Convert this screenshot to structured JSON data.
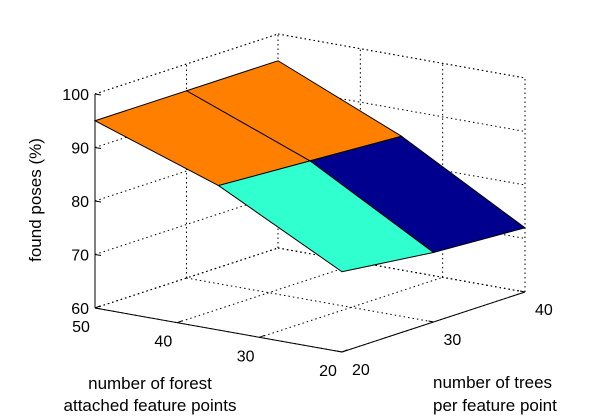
{
  "chart_data": {
    "type": "surface",
    "title": "",
    "zlabel": "found poses (%)",
    "xlabel_lines": [
      "number of forest",
      "attached feature points"
    ],
    "ylabel_lines": [
      "number of trees",
      "per feature point"
    ],
    "x_ticks": [
      "50",
      "40",
      "30",
      "20"
    ],
    "y_ticks": [
      "20",
      "30",
      "40"
    ],
    "z_ticks": [
      "60",
      "70",
      "80",
      "90",
      "100"
    ],
    "x_values": [
      20,
      35,
      50
    ],
    "y_values": [
      20,
      30,
      40
    ],
    "z_grid": [
      [
        75,
        73,
        72
      ],
      [
        87,
        86,
        85
      ],
      [
        95,
        95,
        95
      ]
    ],
    "xlim": [
      20,
      50
    ],
    "ylim": [
      20,
      40
    ],
    "zlim": [
      60,
      100
    ],
    "colormap": [
      "#00008f",
      "#30ffcf",
      "#ff8000"
    ],
    "grid": true,
    "edge_color": "#000000"
  }
}
